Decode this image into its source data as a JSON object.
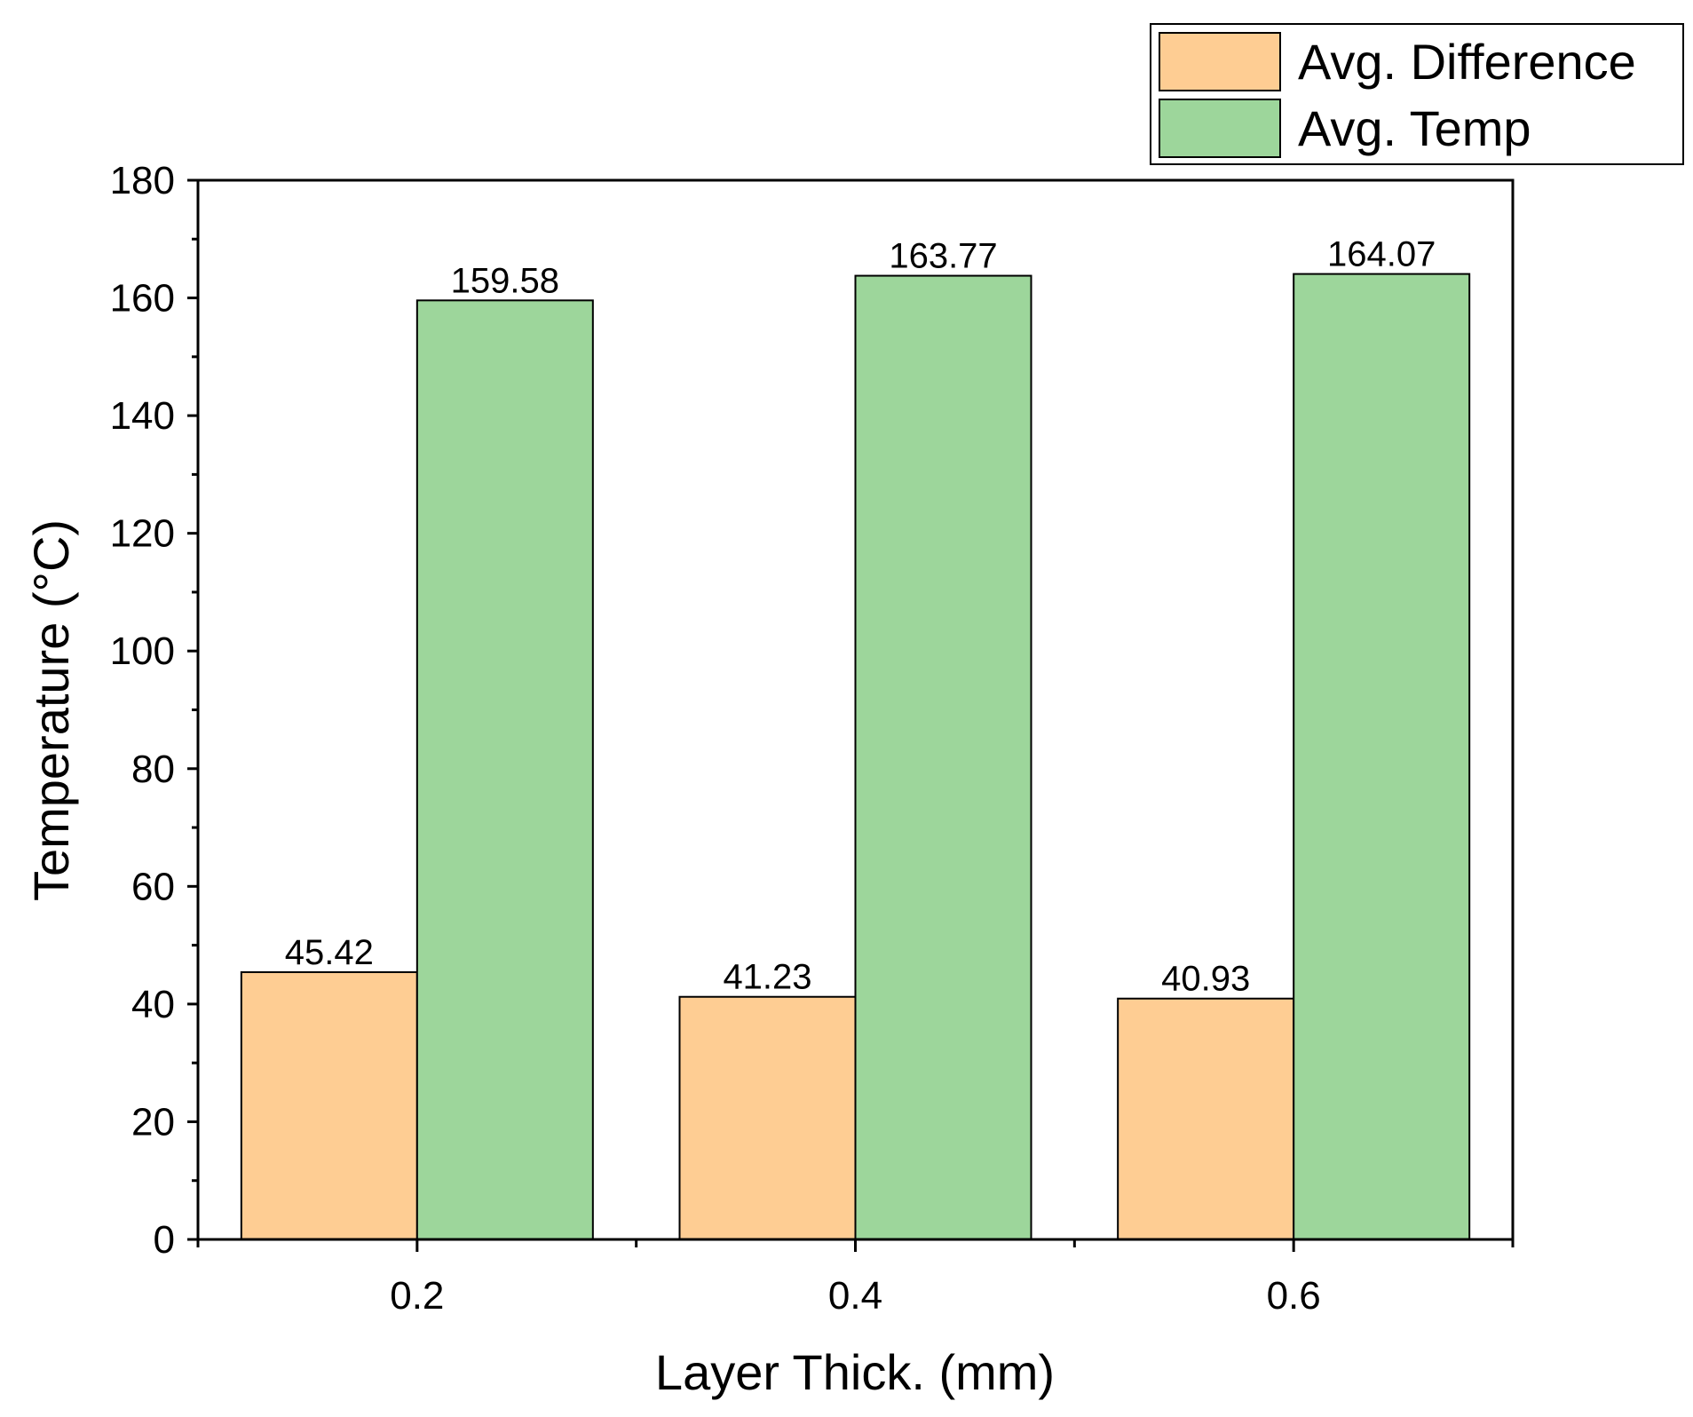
{
  "chart_data": {
    "type": "bar",
    "title": "",
    "xlabel": "Layer Thick. (mm)",
    "ylabel": "Temperature (°C)",
    "categories": [
      "0.2",
      "0.4",
      "0.6"
    ],
    "ylim": [
      0,
      180
    ],
    "yticks": [
      0,
      20,
      40,
      60,
      80,
      100,
      120,
      140,
      160,
      180
    ],
    "legend_position": "top-right",
    "grid": false,
    "series": [
      {
        "name": "Avg. Difference",
        "values": [
          45.42,
          41.23,
          40.93
        ],
        "labels": [
          "45.42",
          "41.23",
          "40.93"
        ],
        "color": "#FECD93"
      },
      {
        "name": "Avg. Temp",
        "values": [
          159.58,
          163.77,
          164.07
        ],
        "labels": [
          "159.58",
          "163.77",
          "164.07"
        ],
        "color": "#9DD69B"
      }
    ]
  }
}
